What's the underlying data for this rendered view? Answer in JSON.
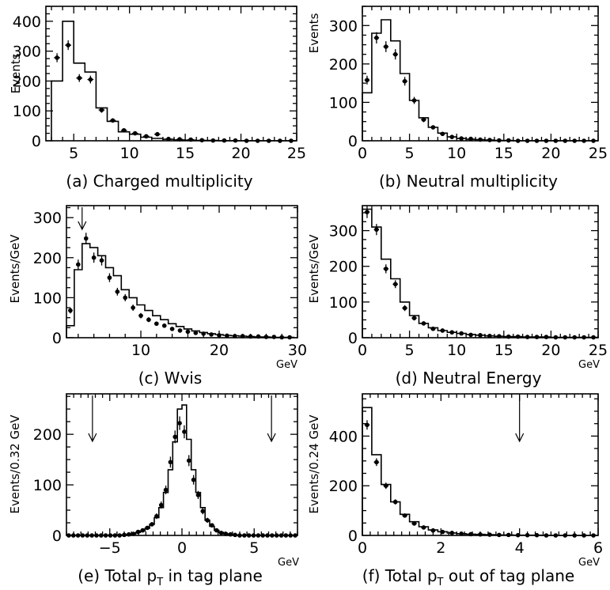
{
  "chart_data": [
    {
      "id": "a",
      "type": "histogram",
      "caption": "(a)  Charged multiplicity",
      "ylabel": "Events",
      "unit": "",
      "xlim": [
        2.5,
        25
      ],
      "ylim": [
        0,
        450
      ],
      "xticks": [
        5,
        10,
        15,
        20,
        25
      ],
      "yticks": [
        0,
        100,
        200,
        300,
        400
      ],
      "hist_edges": [
        3,
        4,
        5,
        6,
        7,
        8,
        9,
        10,
        11,
        12,
        13,
        14,
        15,
        16,
        17,
        18,
        19,
        20,
        21,
        22,
        23,
        24,
        25
      ],
      "hist_values": [
        200,
        400,
        260,
        230,
        110,
        65,
        30,
        22,
        12,
        8,
        5,
        3,
        2,
        1,
        1,
        0,
        0,
        0,
        0,
        0,
        0,
        0
      ],
      "points": {
        "x": [
          3.5,
          4.5,
          5.5,
          6.5,
          7.5,
          8.5,
          9.5,
          10.5,
          11.5,
          12.5,
          13.5,
          14.5,
          15.5,
          16.5,
          17.5,
          18.5,
          19.5,
          20.5,
          21.5,
          22.5,
          23.5,
          24.5
        ],
        "y": [
          278,
          320,
          210,
          205,
          103,
          68,
          35,
          25,
          15,
          22,
          6,
          5,
          4,
          2,
          1,
          1,
          1,
          0,
          0,
          0,
          0,
          0
        ]
      },
      "arrows": []
    },
    {
      "id": "b",
      "type": "histogram",
      "caption": "(b)  Neutral multiplicity",
      "ylabel": "Events",
      "unit": "",
      "xlim": [
        0,
        25
      ],
      "ylim": [
        0,
        350
      ],
      "xticks": [
        0,
        5,
        10,
        15,
        20,
        25
      ],
      "yticks": [
        0,
        100,
        200,
        300
      ],
      "hist_edges": [
        0,
        1,
        2,
        3,
        4,
        5,
        6,
        7,
        8,
        9,
        10,
        11,
        12,
        13,
        14,
        15,
        16,
        17,
        18,
        19,
        20,
        21,
        22,
        23,
        24,
        25
      ],
      "hist_values": [
        125,
        280,
        315,
        260,
        175,
        105,
        60,
        35,
        20,
        10,
        6,
        4,
        3,
        2,
        1,
        1,
        0,
        0,
        0,
        0,
        0,
        0,
        0,
        0,
        0
      ],
      "points": {
        "x": [
          0.5,
          1.5,
          2.5,
          3.5,
          4.5,
          5.5,
          6.5,
          7.5,
          8.5,
          9.5,
          10.5,
          11.5,
          12.5,
          13.5,
          14.5,
          15.5,
          16.5,
          17.5,
          18.5,
          19.5,
          20.5,
          21.5,
          22.5,
          23.5,
          24.5
        ],
        "y": [
          158,
          268,
          245,
          225,
          155,
          105,
          55,
          35,
          18,
          10,
          6,
          5,
          3,
          2,
          1,
          1,
          0,
          0,
          0,
          0,
          0,
          0,
          0,
          0,
          0
        ]
      },
      "arrows": []
    },
    {
      "id": "c",
      "type": "histogram",
      "caption": "(c)  Wvis",
      "ylabel": "Events/GeV",
      "unit": "GeV",
      "xlim": [
        0.5,
        30
      ],
      "ylim": [
        0,
        330
      ],
      "xticks": [
        10,
        20,
        30
      ],
      "yticks": [
        0,
        100,
        200,
        300
      ],
      "hist_edges": [
        0.5,
        1.5,
        2.5,
        3.5,
        4.5,
        5.5,
        6.5,
        7.5,
        8.5,
        9.5,
        10.5,
        11.5,
        12.5,
        13.5,
        14.5,
        15.5,
        16.5,
        17.5,
        18.5,
        19.5,
        20.5,
        21.5,
        22.5,
        23.5,
        24.5,
        25.5,
        26.5,
        27.5,
        28.5,
        29.5
      ],
      "hist_values": [
        30,
        170,
        235,
        225,
        205,
        175,
        155,
        120,
        100,
        82,
        68,
        55,
        45,
        35,
        28,
        22,
        17,
        13,
        10,
        8,
        6,
        5,
        4,
        3,
        2,
        2,
        1,
        1,
        1
      ],
      "points": {
        "x": [
          1,
          2,
          3,
          4,
          5,
          6,
          7,
          8,
          9,
          10,
          11,
          12,
          13,
          14,
          15,
          16,
          17,
          18,
          19,
          20,
          21,
          22,
          23,
          24,
          25,
          26,
          27,
          28,
          29
        ],
        "y": [
          68,
          183,
          248,
          200,
          193,
          150,
          115,
          100,
          75,
          55,
          45,
          35,
          30,
          22,
          18,
          15,
          12,
          10,
          8,
          6,
          5,
          4,
          4,
          3,
          3,
          2,
          2,
          1,
          1
        ]
      },
      "arrows": [
        2.5
      ]
    },
    {
      "id": "d",
      "type": "histogram",
      "caption": "(d)  Neutral Energy",
      "ylabel": "Events/GeV",
      "unit": "GeV",
      "xlim": [
        0,
        25
      ],
      "ylim": [
        0,
        370
      ],
      "xticks": [
        0,
        5,
        10,
        15,
        20,
        25
      ],
      "yticks": [
        0,
        100,
        200,
        300
      ],
      "hist_edges": [
        0,
        1,
        2,
        3,
        4,
        5,
        6,
        7,
        8,
        9,
        10,
        11,
        12,
        13,
        14,
        15,
        16,
        17,
        18,
        19,
        20,
        21,
        22,
        23,
        24,
        25
      ],
      "hist_values": [
        360,
        310,
        220,
        165,
        100,
        62,
        40,
        28,
        20,
        15,
        12,
        9,
        7,
        5,
        4,
        3,
        3,
        2,
        2,
        2,
        1,
        1,
        1,
        1,
        1
      ],
      "points": {
        "x": [
          0.5,
          1.5,
          2.5,
          3.5,
          4.5,
          5.5,
          6.5,
          7.5,
          8.5,
          9.5,
          10.5,
          11.5,
          12.5,
          13.5,
          14.5,
          15.5,
          16.5,
          17.5,
          18.5,
          19.5,
          20.5,
          21.5,
          22.5,
          23.5,
          24.5
        ],
        "y": [
          352,
          303,
          193,
          150,
          83,
          55,
          40,
          25,
          20,
          15,
          12,
          8,
          7,
          5,
          4,
          3,
          3,
          2,
          2,
          2,
          1,
          1,
          1,
          1,
          1
        ]
      },
      "arrows": []
    },
    {
      "id": "e",
      "type": "histogram",
      "caption": "(e) Total p",
      "caption_sub": "T",
      "caption_rest": " in tag plane",
      "ylabel": "Events/0.32 GeV",
      "unit": "GeV",
      "xlim": [
        -8,
        8
      ],
      "ylim": [
        0,
        280
      ],
      "xticks": [
        -5,
        0,
        5
      ],
      "yticks": [
        0,
        100,
        200
      ],
      "hist_edges": [
        -8,
        -7.68,
        -7.36,
        -7.04,
        -6.72,
        -6.4,
        -6.08,
        -5.76,
        -5.44,
        -5.12,
        -4.8,
        -4.48,
        -4.16,
        -3.84,
        -3.52,
        -3.2,
        -2.88,
        -2.56,
        -2.24,
        -1.92,
        -1.6,
        -1.28,
        -0.96,
        -0.64,
        -0.32,
        0,
        0.32,
        0.64,
        0.96,
        1.28,
        1.6,
        1.92,
        2.24,
        2.56,
        2.88,
        3.2,
        3.52,
        3.84,
        4.16,
        4.48,
        4.8,
        5.12,
        5.44,
        5.76,
        6.08,
        6.4,
        6.72,
        7.04,
        7.36,
        7.68,
        8
      ],
      "hist_values": [
        0,
        0,
        0,
        0,
        0,
        0,
        0,
        0,
        0,
        0,
        0,
        0,
        1,
        2,
        3,
        6,
        9,
        14,
        22,
        35,
        55,
        85,
        130,
        185,
        250,
        258,
        190,
        130,
        85,
        55,
        30,
        18,
        10,
        6,
        3,
        2,
        1,
        0,
        0,
        0,
        0,
        0,
        0,
        0,
        0,
        0,
        0,
        0,
        0,
        0
      ],
      "points": {
        "x": [
          -7.84,
          -7.52,
          -7.2,
          -6.88,
          -6.56,
          -6.24,
          -5.92,
          -5.6,
          -5.28,
          -4.96,
          -4.64,
          -4.32,
          -4.0,
          -3.68,
          -3.36,
          -3.04,
          -2.72,
          -2.4,
          -2.08,
          -1.76,
          -1.44,
          -1.12,
          -0.8,
          -0.48,
          -0.16,
          0.16,
          0.48,
          0.8,
          1.12,
          1.44,
          1.76,
          2.08,
          2.4,
          2.72,
          3.04,
          3.36,
          3.68,
          4.0,
          4.32,
          4.64,
          4.96,
          5.28,
          5.6,
          5.92,
          6.24,
          6.56,
          6.88,
          7.2,
          7.52,
          7.84
        ],
        "y": [
          0,
          0,
          0,
          0,
          0,
          0,
          0,
          0,
          0,
          0,
          0,
          0,
          1,
          2,
          3,
          7,
          10,
          15,
          22,
          38,
          60,
          90,
          145,
          195,
          222,
          205,
          148,
          110,
          80,
          48,
          30,
          20,
          10,
          5,
          3,
          2,
          1,
          0,
          0,
          0,
          0,
          0,
          0,
          0,
          0,
          0,
          0,
          0,
          0,
          0
        ]
      },
      "arrows": [
        -6.2,
        6.2
      ]
    },
    {
      "id": "f",
      "type": "histogram",
      "caption": "(f) Total p",
      "caption_sub": "T",
      "caption_rest": " out of tag plane",
      "ylabel": "Events/0.24 GeV",
      "unit": "GeV",
      "xlim": [
        0,
        6
      ],
      "ylim": [
        0,
        570
      ],
      "xticks": [
        0,
        2,
        4,
        6
      ],
      "yticks": [
        0,
        200,
        400
      ],
      "hist_edges": [
        0,
        0.24,
        0.48,
        0.72,
        0.96,
        1.2,
        1.44,
        1.68,
        1.92,
        2.16,
        2.4,
        2.64,
        2.88,
        3.12,
        3.36,
        3.6,
        3.84,
        4.08,
        4.32,
        4.56,
        4.8,
        5.04,
        5.28,
        5.52,
        5.76,
        6.0
      ],
      "hist_values": [
        515,
        325,
        205,
        135,
        85,
        55,
        35,
        22,
        15,
        10,
        7,
        5,
        4,
        3,
        2,
        2,
        1,
        1,
        1,
        0,
        0,
        0,
        0,
        0,
        0
      ],
      "points": {
        "x": [
          0.12,
          0.36,
          0.6,
          0.84,
          1.08,
          1.32,
          1.56,
          1.8,
          2.04,
          2.28,
          2.52,
          2.76,
          3.0,
          3.24,
          3.48,
          3.72,
          3.96,
          4.2,
          4.44,
          4.68,
          4.92,
          5.16,
          5.4,
          5.64,
          5.88
        ],
        "y": [
          445,
          295,
          200,
          135,
          80,
          48,
          32,
          20,
          14,
          10,
          7,
          5,
          4,
          3,
          2,
          2,
          1,
          1,
          1,
          0,
          0,
          0,
          0,
          0,
          0
        ]
      },
      "arrows": [
        4.0
      ]
    }
  ]
}
